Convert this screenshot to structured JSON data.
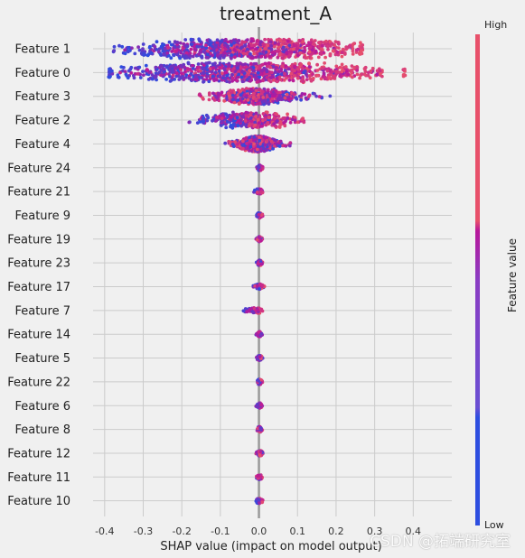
{
  "chart_data": {
    "type": "scatter",
    "subtype": "shap-beeswarm",
    "title": "treatment_A",
    "xlabel": "SHAP value (impact on model output)",
    "xlim": [
      -0.43,
      0.5
    ],
    "xticks": [
      "-0.4",
      "-0.3",
      "-0.2",
      "-0.1",
      "0.0",
      "0.1",
      "0.2",
      "0.3",
      "0.4"
    ],
    "xtick_values": [
      -0.4,
      -0.3,
      -0.2,
      -0.1,
      0.0,
      0.1,
      0.2,
      0.3,
      0.4
    ],
    "grid": true,
    "features": [
      {
        "name": "Feature 1",
        "min": -0.38,
        "max": 0.27,
        "low_center": -0.19,
        "high_center": 0.14,
        "spread": 1.0
      },
      {
        "name": "Feature 0",
        "min": -0.39,
        "max": 0.38,
        "low_center": -0.2,
        "high_center": 0.15,
        "spread": 1.0
      },
      {
        "name": "Feature 3",
        "min": -0.16,
        "max": 0.19,
        "low_center": 0.02,
        "high_center": -0.03,
        "spread": 0.75
      },
      {
        "name": "Feature 2",
        "min": -0.19,
        "max": 0.12,
        "low_center": -0.08,
        "high_center": 0.03,
        "spread": 0.6
      },
      {
        "name": "Feature 4",
        "min": -0.09,
        "max": 0.09,
        "low_center": 0.0,
        "high_center": -0.01,
        "spread": 0.6
      },
      {
        "name": "Feature 24",
        "min": -0.01,
        "max": 0.01,
        "low_center": 0.0,
        "high_center": 0.005,
        "spread": 0.2
      },
      {
        "name": "Feature 21",
        "min": -0.02,
        "max": 0.01,
        "low_center": -0.003,
        "high_center": 0.003,
        "spread": 0.2
      },
      {
        "name": "Feature 9",
        "min": -0.01,
        "max": 0.01,
        "low_center": 0.0,
        "high_center": 0.003,
        "spread": 0.2
      },
      {
        "name": "Feature 19",
        "min": -0.01,
        "max": 0.01,
        "low_center": 0.0,
        "high_center": 0.003,
        "spread": 0.2
      },
      {
        "name": "Feature 23",
        "min": -0.01,
        "max": 0.01,
        "low_center": 0.0,
        "high_center": 0.003,
        "spread": 0.2
      },
      {
        "name": "Feature 17",
        "min": -0.02,
        "max": 0.015,
        "low_center": -0.003,
        "high_center": 0.004,
        "spread": 0.2
      },
      {
        "name": "Feature 7",
        "min": -0.05,
        "max": 0.01,
        "low_center": -0.03,
        "high_center": 0.002,
        "spread": 0.2
      },
      {
        "name": "Feature 14",
        "min": -0.01,
        "max": 0.01,
        "low_center": 0.0,
        "high_center": 0.003,
        "spread": 0.2
      },
      {
        "name": "Feature 5",
        "min": -0.01,
        "max": 0.01,
        "low_center": 0.0,
        "high_center": 0.003,
        "spread": 0.2
      },
      {
        "name": "Feature 22",
        "min": -0.01,
        "max": 0.01,
        "low_center": 0.0,
        "high_center": 0.003,
        "spread": 0.2
      },
      {
        "name": "Feature 6",
        "min": -0.01,
        "max": 0.01,
        "low_center": 0.0,
        "high_center": 0.003,
        "spread": 0.2
      },
      {
        "name": "Feature 8",
        "min": -0.01,
        "max": 0.01,
        "low_center": 0.0,
        "high_center": 0.003,
        "spread": 0.2
      },
      {
        "name": "Feature 12",
        "min": -0.01,
        "max": 0.015,
        "low_center": 0.0,
        "high_center": 0.004,
        "spread": 0.2
      },
      {
        "name": "Feature 11",
        "min": -0.01,
        "max": 0.01,
        "low_center": 0.0,
        "high_center": 0.003,
        "spread": 0.2
      },
      {
        "name": "Feature 10",
        "min": -0.015,
        "max": 0.01,
        "low_center": -0.002,
        "high_center": 0.003,
        "spread": 0.2
      }
    ],
    "colorbar": {
      "label": "Feature value",
      "high": "High",
      "low": "Low",
      "colors": {
        "high": "#e8516b",
        "mid": "#b8179b",
        "low": "#2d4ee0"
      }
    },
    "background": "#f0f0f0",
    "grid_color": "#cbcbcb"
  },
  "watermark": "CSDN @拓端研究室"
}
